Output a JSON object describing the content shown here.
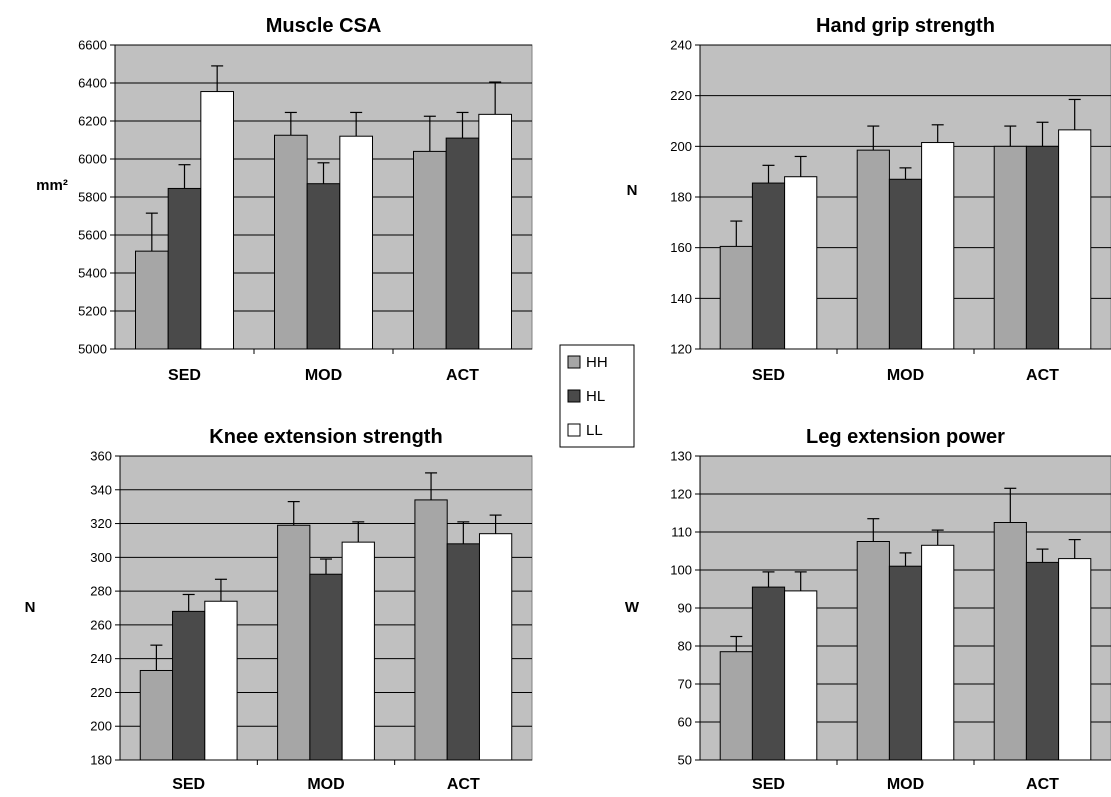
{
  "colors": {
    "plot_bg": "#c0c0c0",
    "gridline": "#000000",
    "HH": "#a6a6a6",
    "HL": "#4a4a4a",
    "LL": "#ffffff"
  },
  "legend": {
    "placement": "center",
    "items": [
      {
        "label": "HH",
        "color": "#a6a6a6"
      },
      {
        "label": "HL",
        "color": "#4a4a4a"
      },
      {
        "label": "LL",
        "color": "#ffffff"
      }
    ]
  },
  "chart_data": [
    {
      "type": "bar",
      "title": "Muscle CSA",
      "ylabel": "mm²",
      "ylim": [
        5000,
        6600
      ],
      "ytick_step": 200,
      "grid": true,
      "categories": [
        "SED",
        "MOD",
        "ACT"
      ],
      "series": [
        {
          "name": "HH",
          "values": [
            5515,
            6125,
            6040
          ],
          "errors": [
            200,
            120,
            185
          ]
        },
        {
          "name": "HL",
          "values": [
            5845,
            5870,
            6110
          ],
          "errors": [
            125,
            110,
            135
          ]
        },
        {
          "name": "LL",
          "values": [
            6355,
            6120,
            6235
          ],
          "errors": [
            135,
            125,
            170
          ]
        }
      ]
    },
    {
      "type": "bar",
      "title": "Hand grip strength",
      "ylabel": "N",
      "ylim": [
        120,
        240
      ],
      "ytick_step": 20,
      "grid": true,
      "categories": [
        "SED",
        "MOD",
        "ACT"
      ],
      "series": [
        {
          "name": "HH",
          "values": [
            160.5,
            198.5,
            200.0
          ],
          "errors": [
            10,
            9.5,
            8
          ]
        },
        {
          "name": "HL",
          "values": [
            185.5,
            187.0,
            200.0
          ],
          "errors": [
            7,
            4.5,
            9.5
          ]
        },
        {
          "name": "LL",
          "values": [
            188.0,
            201.5,
            206.5
          ],
          "errors": [
            8,
            7,
            12
          ]
        }
      ]
    },
    {
      "type": "bar",
      "title": "Knee extension strength",
      "ylabel": "N",
      "ylim": [
        180,
        360
      ],
      "ytick_step": 20,
      "grid": true,
      "categories": [
        "SED",
        "MOD",
        "ACT"
      ],
      "series": [
        {
          "name": "HH",
          "values": [
            233,
            319,
            334
          ],
          "errors": [
            15,
            14,
            16
          ]
        },
        {
          "name": "HL",
          "values": [
            268,
            290,
            308
          ],
          "errors": [
            10,
            9,
            13
          ]
        },
        {
          "name": "LL",
          "values": [
            274,
            309,
            314
          ],
          "errors": [
            13,
            12,
            11
          ]
        }
      ]
    },
    {
      "type": "bar",
      "title": "Leg extension power",
      "ylabel": "W",
      "ylim": [
        50,
        130
      ],
      "ytick_step": 10,
      "grid": true,
      "categories": [
        "SED",
        "MOD",
        "ACT"
      ],
      "series": [
        {
          "name": "HH",
          "values": [
            78.5,
            107.5,
            112.5
          ],
          "errors": [
            4,
            6,
            9
          ]
        },
        {
          "name": "HL",
          "values": [
            95.5,
            101.0,
            102.0
          ],
          "errors": [
            4,
            3.5,
            3.5
          ]
        },
        {
          "name": "LL",
          "values": [
            94.5,
            106.5,
            103.0
          ],
          "errors": [
            5,
            4,
            5
          ]
        }
      ]
    }
  ]
}
